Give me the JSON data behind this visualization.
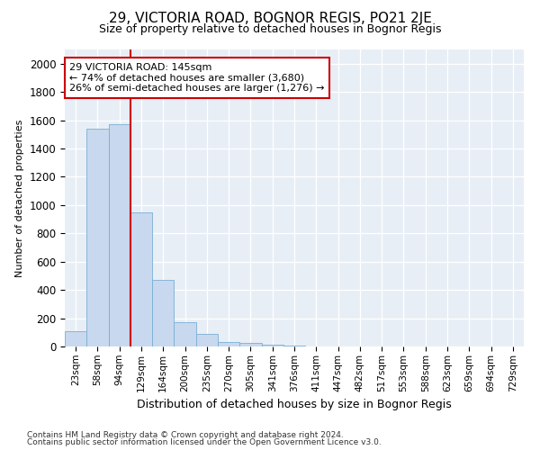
{
  "title": "29, VICTORIA ROAD, BOGNOR REGIS, PO21 2JE",
  "subtitle": "Size of property relative to detached houses in Bognor Regis",
  "xlabel": "Distribution of detached houses by size in Bognor Regis",
  "ylabel": "Number of detached properties",
  "footnote1": "Contains HM Land Registry data © Crown copyright and database right 2024.",
  "footnote2": "Contains public sector information licensed under the Open Government Licence v3.0.",
  "categories": [
    "23sqm",
    "58sqm",
    "94sqm",
    "129sqm",
    "164sqm",
    "200sqm",
    "235sqm",
    "270sqm",
    "305sqm",
    "341sqm",
    "376sqm",
    "411sqm",
    "447sqm",
    "482sqm",
    "517sqm",
    "553sqm",
    "588sqm",
    "623sqm",
    "659sqm",
    "694sqm",
    "729sqm"
  ],
  "values": [
    110,
    1540,
    1570,
    950,
    470,
    175,
    90,
    35,
    25,
    15,
    5,
    0,
    0,
    0,
    0,
    0,
    0,
    0,
    0,
    0,
    0
  ],
  "bar_color": "#c8d8ee",
  "bar_edge_color": "#7aafd4",
  "vline_x_idx": 3,
  "vline_color": "#cc0000",
  "annotation_text": "29 VICTORIA ROAD: 145sqm\n← 74% of detached houses are smaller (3,680)\n26% of semi-detached houses are larger (1,276) →",
  "annotation_box_facecolor": "#ffffff",
  "annotation_box_edgecolor": "#cc0000",
  "ylim": [
    0,
    2100
  ],
  "yticks": [
    0,
    200,
    400,
    600,
    800,
    1000,
    1200,
    1400,
    1600,
    1800,
    2000
  ],
  "bg_color": "#ffffff",
  "plot_bg_color": "#e8eef5",
  "title_fontsize": 11,
  "subtitle_fontsize": 9,
  "ylabel_fontsize": 8,
  "xlabel_fontsize": 9
}
